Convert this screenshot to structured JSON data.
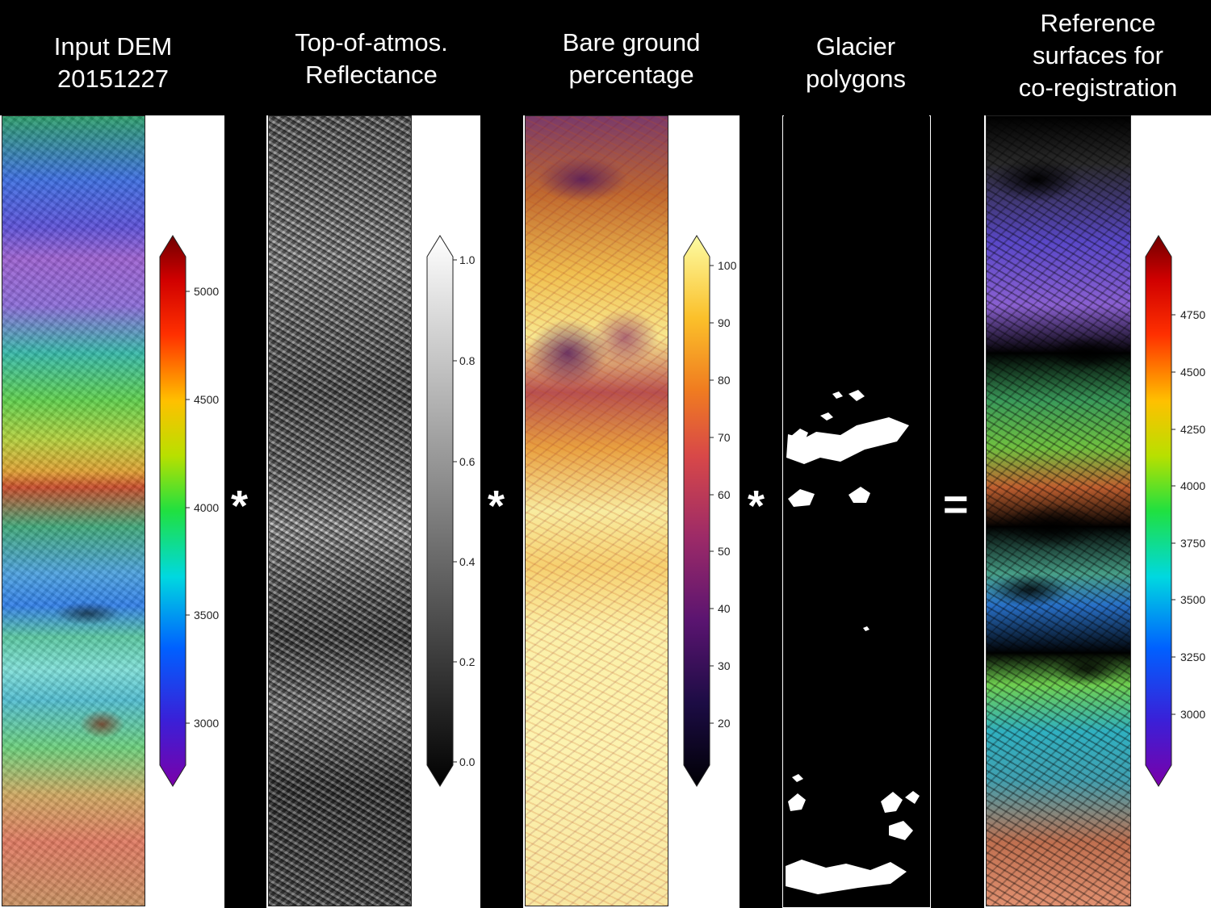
{
  "panels": [
    {
      "title_lines": [
        "Input DEM",
        "20151227"
      ],
      "colormap": "rainbow-terrain",
      "ticks": [
        "5000",
        "4500",
        "4000",
        "3500",
        "3000"
      ]
    },
    {
      "title_lines": [
        "Top-of-atmos.",
        "Reflectance"
      ],
      "colormap": "grayscale",
      "ticks": [
        "1.0",
        "0.8",
        "0.6",
        "0.4",
        "0.2",
        "0.0"
      ]
    },
    {
      "title_lines": [
        "Bare ground",
        "percentage"
      ],
      "colormap": "inferno",
      "ticks": [
        "100",
        "90",
        "80",
        "70",
        "60",
        "50",
        "40",
        "30",
        "20"
      ]
    },
    {
      "title_lines": [
        "Glacier",
        "polygons"
      ],
      "colormap": "binary-mask"
    },
    {
      "title_lines": [
        "Reference",
        "surfaces for",
        "co-registration"
      ],
      "colormap": "rainbow-terrain-masked",
      "ticks": [
        "4750",
        "4500",
        "4250",
        "4000",
        "3750",
        "3500",
        "3250",
        "3000"
      ]
    }
  ],
  "operators": [
    "*",
    "*",
    "*",
    "="
  ]
}
